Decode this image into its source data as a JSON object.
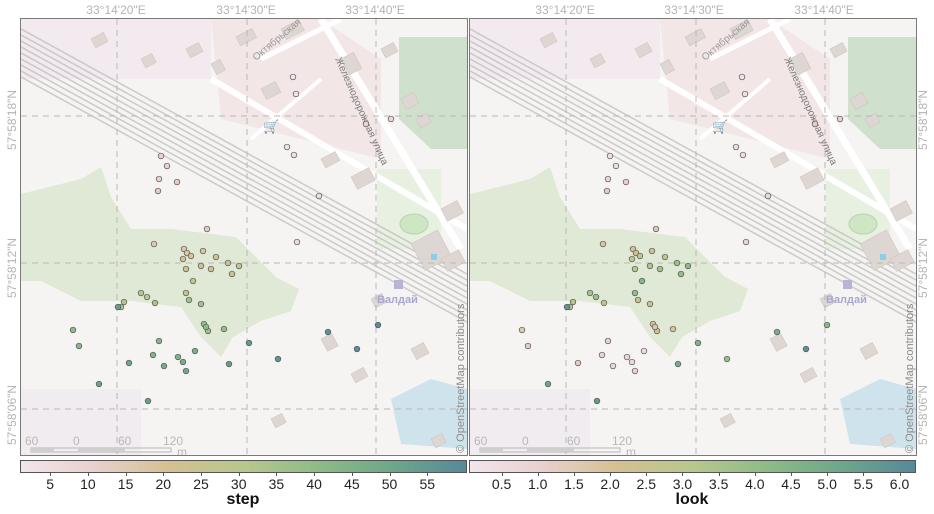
{
  "axis_labels": {
    "lon": [
      "33°14'20\"E",
      "33°14'30\"E",
      "33°14'40\"E"
    ],
    "lat": [
      "57°58'18\"N",
      "57°58'12\"N",
      "57°58'06\"N"
    ]
  },
  "map_labels": {
    "street1": "Октябрьская",
    "street2": "Железнодорожная улица",
    "station": "Валдай",
    "copyright": "© OpenStreetMap contributors"
  },
  "scalebar": {
    "labels": [
      "60",
      "0",
      "60",
      "120"
    ],
    "unit": "m"
  },
  "panels": [
    {
      "name": "step",
      "colorbar_title": "step",
      "ticks": [
        "5",
        "10",
        "15",
        "20",
        "25",
        "30",
        "35",
        "40",
        "45",
        "50",
        "55"
      ],
      "tick_values": [
        5,
        10,
        15,
        20,
        25,
        30,
        35,
        40,
        45,
        50,
        55
      ],
      "range": [
        1,
        60
      ]
    },
    {
      "name": "look",
      "colorbar_title": "look",
      "ticks": [
        "0.5",
        "1.0",
        "1.5",
        "2.0",
        "2.5",
        "3.0",
        "3.5",
        "4.0",
        "4.5",
        "5.0",
        "5.5",
        "6.0"
      ],
      "tick_values": [
        0.5,
        1.0,
        1.5,
        2.0,
        2.5,
        3.0,
        3.5,
        4.0,
        4.5,
        5.0,
        5.5,
        6.0
      ],
      "range": [
        0.05,
        6.2
      ]
    }
  ],
  "colors": {
    "ramp": [
      "#f3e4ee",
      "#e8d0cc",
      "#d5c090",
      "#b7c88c",
      "#8dbc86",
      "#6ca88a",
      "#56899a"
    ]
  },
  "chart_data": {
    "type": "scatter",
    "point_values_step": [
      1,
      2,
      3,
      4,
      5,
      6,
      7,
      8,
      9,
      10,
      11,
      12,
      13,
      14,
      15,
      16,
      17,
      18,
      19,
      20,
      21,
      22,
      23,
      24,
      25,
      26,
      27,
      28,
      29,
      30,
      31,
      32,
      33,
      34,
      35,
      36,
      37,
      38,
      39,
      40,
      41,
      42,
      43,
      44,
      45,
      46,
      47,
      48,
      49,
      50,
      51,
      52,
      53,
      54,
      55,
      56,
      57,
      58,
      59
    ],
    "point_values_look": [
      0.2,
      0.3,
      0.5,
      0.4,
      0.6,
      0.8,
      1.0,
      1.2,
      0.3,
      0.5,
      0.9,
      1.1,
      1.3,
      1.6,
      1.8,
      2.0,
      2.2,
      2.4,
      2.6,
      2.8,
      3.0,
      3.2,
      3.4,
      3.6,
      3.8,
      4.0,
      4.2,
      4.4,
      4.0,
      3.8,
      3.5,
      3.3,
      3.1,
      2.9,
      2.7,
      2.5,
      2.3,
      2.1,
      1.9,
      1.7,
      1.5,
      1.3,
      1.1,
      0.9,
      0.7,
      0.5,
      0.6,
      0.8,
      1.0,
      1.2,
      5.2,
      5.6,
      5.8,
      4.9,
      4.6,
      3.9,
      4.8,
      5.9,
      4.3
    ]
  }
}
